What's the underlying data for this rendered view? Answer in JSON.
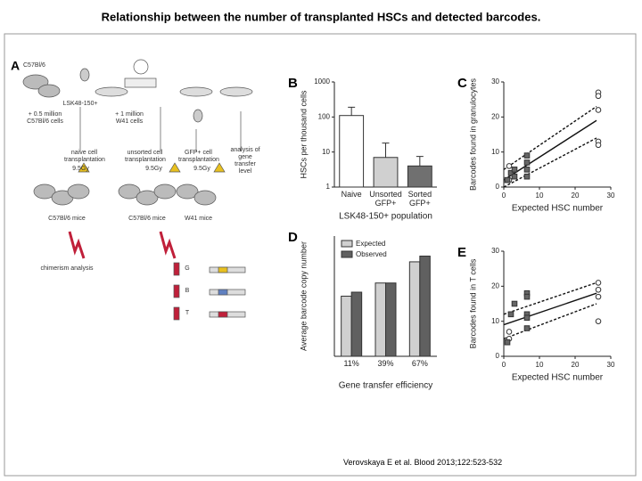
{
  "title": "Relationship between the number of transplanted HSCs and detected barcodes.",
  "citation": "Verovskaya E et al. Blood 2013;122:523-532",
  "panel_a": {
    "label": "A",
    "texts": [
      "C57Bl/6",
      "LSK48-150+",
      "+ 0.5 million C57Bl/6 cells",
      "+ 1 million W41 cells",
      "naive cell transplantation",
      "unsorted cell transplantation",
      "GFP+ cell transplantation",
      "analysis of gene transfer level",
      "9.5Gy",
      "9.5Gy",
      "9.5Gy",
      "C57Bl/6 mice",
      "C57Bl/6 mice",
      "W41 mice",
      "chimerism analysis",
      "G",
      "B",
      "T"
    ]
  },
  "chart_data": [
    {
      "type": "bar",
      "panel": "B",
      "ylabel": "HSCs per thousand cells",
      "xlabel": "LSK48-150+ population",
      "categories": [
        "Naive",
        "Unsorted GFP+",
        "Sorted GFP+"
      ],
      "values": [
        110,
        7,
        4
      ],
      "errors": [
        80,
        11,
        3.5
      ],
      "colors": [
        "#ffffff",
        "#d0d0d0",
        "#707070"
      ],
      "log_scale": true,
      "ylim": [
        1,
        1000
      ],
      "yticks": [
        1,
        10,
        100,
        1000
      ]
    },
    {
      "type": "scatter",
      "panel": "C",
      "ylabel": "Barcodes found in granulocytes",
      "xlabel": "Expected HSC number",
      "xlim": [
        0,
        30
      ],
      "ylim": [
        0,
        30
      ],
      "xticks": [
        0,
        10,
        20,
        30
      ],
      "yticks": [
        0,
        10,
        20,
        30
      ],
      "series": [
        {
          "marker": "circle",
          "x": [
            1.5,
            1.5,
            26.5,
            26.5,
            26.5,
            26.5,
            26.5
          ],
          "y": [
            6,
            2,
            27,
            26,
            22,
            13,
            12
          ]
        },
        {
          "marker": "square",
          "x": [
            1,
            2,
            3,
            3,
            6.5,
            6.5,
            6.5,
            6.5
          ],
          "y": [
            2,
            4,
            3,
            5,
            9,
            7,
            5,
            3
          ]
        }
      ],
      "lines": [
        {
          "style": "solid",
          "x": [
            0,
            26
          ],
          "y": [
            2,
            19
          ]
        },
        {
          "style": "dashed",
          "x": [
            0,
            26
          ],
          "y": [
            5,
            23
          ]
        },
        {
          "style": "dashed",
          "x": [
            0,
            26
          ],
          "y": [
            0,
            14
          ]
        }
      ]
    },
    {
      "type": "bar",
      "panel": "D",
      "ylabel": "Average barcode copy number",
      "xlabel": "Gene transfer efficiency",
      "categories": [
        "11%",
        "39%",
        "67%"
      ],
      "ylim": [
        0,
        2.1
      ],
      "series": [
        {
          "name": "Expected",
          "color": "#d0d0d0",
          "values": [
            1.05,
            1.28,
            1.65
          ]
        },
        {
          "name": "Observed",
          "color": "#606060",
          "values": [
            1.12,
            1.28,
            1.75
          ]
        }
      ]
    },
    {
      "type": "scatter",
      "panel": "E",
      "ylabel": "Barcodes found in T cells",
      "xlabel": "Expected HSC number",
      "xlim": [
        0,
        30
      ],
      "ylim": [
        0,
        30
      ],
      "xticks": [
        0,
        10,
        20,
        30
      ],
      "yticks": [
        0,
        10,
        20,
        30
      ],
      "series": [
        {
          "marker": "circle",
          "x": [
            1.5,
            1.5,
            26.5,
            26.5,
            26.5,
            26.5
          ],
          "y": [
            7,
            5,
            21,
            19,
            17,
            10
          ]
        },
        {
          "marker": "square",
          "x": [
            1,
            2,
            3,
            6.5,
            6.5,
            6.5,
            6.5,
            6.5
          ],
          "y": [
            4,
            12,
            15,
            18,
            17,
            12,
            11,
            8
          ]
        }
      ],
      "lines": [
        {
          "style": "solid",
          "x": [
            0,
            26
          ],
          "y": [
            9,
            18
          ]
        },
        {
          "style": "dashed",
          "x": [
            0,
            26
          ],
          "y": [
            12,
            21
          ]
        },
        {
          "style": "dashed",
          "x": [
            0,
            26
          ],
          "y": [
            5,
            15
          ]
        }
      ]
    }
  ]
}
